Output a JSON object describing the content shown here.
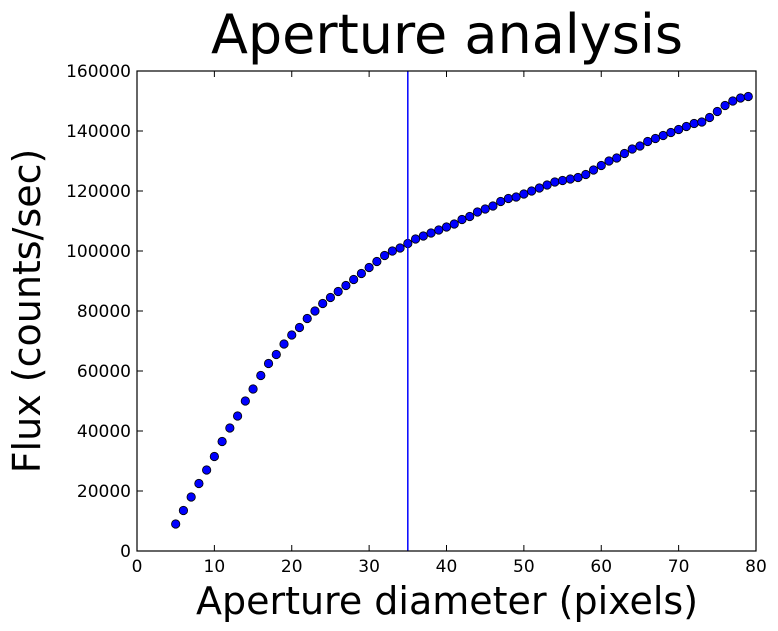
{
  "chart_data": {
    "type": "scatter",
    "title": "Aperture analysis",
    "xlabel": "Aperture diameter (pixels)",
    "ylabel": "Flux (counts/sec)",
    "xlim": [
      0,
      80
    ],
    "ylim": [
      0,
      160000
    ],
    "xticks": [
      "0",
      "10",
      "20",
      "30",
      "40",
      "50",
      "60",
      "70",
      "80"
    ],
    "yticks": [
      "0",
      "20000",
      "40000",
      "60000",
      "80000",
      "100000",
      "120000",
      "140000",
      "160000"
    ],
    "grid": false,
    "legend": "none",
    "marker_color": "#0000ff",
    "vline_x": 35,
    "vline_color": "#0000ff",
    "x": [
      5,
      6,
      7,
      8,
      9,
      10,
      11,
      12,
      13,
      14,
      15,
      16,
      17,
      18,
      19,
      20,
      21,
      22,
      23,
      24,
      25,
      26,
      27,
      28,
      29,
      30,
      31,
      32,
      33,
      34,
      35,
      36,
      37,
      38,
      39,
      40,
      41,
      42,
      43,
      44,
      45,
      46,
      47,
      48,
      49,
      50,
      51,
      52,
      53,
      54,
      55,
      56,
      57,
      58,
      59,
      60,
      61,
      62,
      63,
      64,
      65,
      66,
      67,
      68,
      69,
      70,
      71,
      72,
      73,
      74,
      75,
      76,
      77,
      78,
      79
    ],
    "y": [
      9000,
      13500,
      18000,
      22500,
      27000,
      31500,
      36500,
      41000,
      45000,
      50000,
      54000,
      58500,
      62500,
      65500,
      69000,
      72000,
      74500,
      77500,
      80000,
      82500,
      84500,
      86500,
      88500,
      90500,
      92500,
      94500,
      96500,
      98500,
      100000,
      101000,
      102500,
      104000,
      105000,
      106000,
      107000,
      108000,
      109000,
      110500,
      111500,
      113000,
      114000,
      115000,
      116500,
      117500,
      118000,
      119000,
      120000,
      121000,
      122000,
      123000,
      123500,
      124000,
      124500,
      125500,
      127000,
      128500,
      130000,
      131000,
      132500,
      134000,
      135000,
      136500,
      137500,
      138500,
      139500,
      140500,
      141500,
      142500,
      143000,
      144500,
      146500,
      148500,
      150000,
      151000,
      151500
    ]
  }
}
